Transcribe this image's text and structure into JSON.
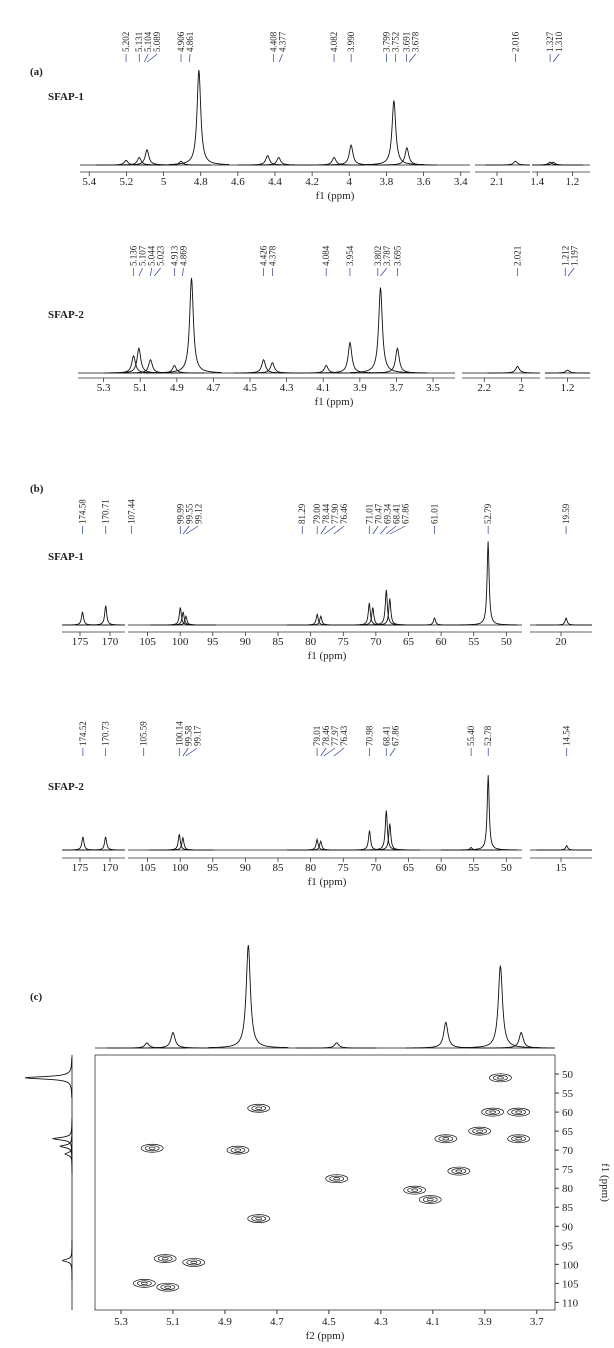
{
  "chart_data": [
    {
      "type": "spectrum",
      "panel": "(a)",
      "sample": "SFAP-1",
      "xlabel": "f1 (ppm)",
      "color": "#111111",
      "label_color": "#2e3f8f",
      "segments": [
        {
          "xlim": [
            5.45,
            3.35
          ],
          "xticks": [
            5.4,
            5.2,
            5.0,
            4.8,
            4.6,
            4.4,
            4.2,
            4.0,
            3.8,
            3.6,
            3.4
          ]
        },
        {
          "xlim": [
            2.2,
            1.95
          ],
          "xticks": [
            2.1
          ]
        },
        {
          "xlim": [
            1.43,
            1.1
          ],
          "xticks": [
            1.4,
            1.2
          ]
        }
      ],
      "peaks": [
        {
          "x": 5.202,
          "y": 5
        },
        {
          "x": 5.131,
          "y": 8
        },
        {
          "x": 5.089,
          "y": 16
        },
        {
          "x": 4.906,
          "y": 4
        },
        {
          "x": 4.81,
          "y": 100
        },
        {
          "x": 4.44,
          "y": 10
        },
        {
          "x": 4.38,
          "y": 8
        },
        {
          "x": 4.082,
          "y": 8
        },
        {
          "x": 3.99,
          "y": 21
        },
        {
          "x": 3.76,
          "y": 68
        },
        {
          "x": 3.69,
          "y": 18
        },
        {
          "x": 2.016,
          "y": 4
        },
        {
          "x": 1.327,
          "y": 3
        },
        {
          "x": 1.31,
          "y": 3
        }
      ],
      "peak_labels": [
        5.202,
        5.131,
        5.104,
        5.089,
        4.906,
        4.861,
        4.408,
        4.377,
        4.082,
        {
          "value": 3.99,
          "label": "3.990"
        },
        3.799,
        3.752,
        3.691,
        3.678,
        2.016,
        1.327,
        {
          "value": 1.31,
          "label": "1.310"
        }
      ]
    },
    {
      "type": "spectrum",
      "sample": "SFAP-2",
      "xlabel": "f1 (ppm)",
      "color": "#111111",
      "label_color": "#2e3f8f",
      "segments": [
        {
          "xlim": [
            5.44,
            3.38
          ],
          "xticks": [
            5.3,
            5.1,
            4.9,
            4.7,
            4.5,
            4.3,
            4.1,
            3.9,
            3.7,
            3.5
          ]
        },
        {
          "xlim": [
            2.32,
            1.9
          ],
          "xticks": [
            2.2,
            2.0
          ]
        },
        {
          "xlim": [
            1.32,
            1.08
          ],
          "xticks": [
            1.2
          ]
        }
      ],
      "peaks": [
        {
          "x": 5.136,
          "y": 18
        },
        {
          "x": 5.107,
          "y": 26
        },
        {
          "x": 5.044,
          "y": 14
        },
        {
          "x": 4.913,
          "y": 8
        },
        {
          "x": 4.82,
          "y": 100
        },
        {
          "x": 4.426,
          "y": 14
        },
        {
          "x": 4.378,
          "y": 11
        },
        {
          "x": 4.084,
          "y": 8
        },
        {
          "x": 3.954,
          "y": 32
        },
        {
          "x": 3.787,
          "y": 90
        },
        {
          "x": 3.695,
          "y": 26
        },
        {
          "x": 2.021,
          "y": 7
        },
        {
          "x": 1.2,
          "y": 3
        }
      ],
      "peak_labels": [
        5.136,
        5.107,
        5.044,
        5.023,
        4.913,
        4.869,
        4.426,
        4.378,
        4.084,
        3.954,
        3.802,
        3.787,
        3.695,
        2.021,
        1.212,
        1.197
      ]
    },
    {
      "type": "spectrum",
      "panel": "(b)",
      "sample": "SFAP-1",
      "xlabel": "f1 (ppm)",
      "color": "#111111",
      "label_color": "#2e3f8f",
      "segments": [
        {
          "xlim": [
            178,
            167.5
          ],
          "xticks": [
            175,
            170
          ]
        },
        {
          "xlim": [
            108,
            47.6
          ],
          "xticks": [
            105,
            100,
            95,
            90,
            85,
            80,
            75,
            70,
            65,
            60,
            55,
            50
          ]
        },
        {
          "xlim": [
            22.5,
            17.5
          ],
          "xticks": [
            20
          ]
        }
      ],
      "peaks": [
        {
          "x": 174.58,
          "y": 15
        },
        {
          "x": 170.71,
          "y": 22
        },
        {
          "x": 99.99,
          "y": 20
        },
        {
          "x": 99.55,
          "y": 15
        },
        {
          "x": 99.12,
          "y": 10
        },
        {
          "x": 79.0,
          "y": 12
        },
        {
          "x": 78.44,
          "y": 10
        },
        {
          "x": 71.01,
          "y": 25
        },
        {
          "x": 70.47,
          "y": 20
        },
        {
          "x": 68.41,
          "y": 40
        },
        {
          "x": 67.86,
          "y": 30
        },
        {
          "x": 61.01,
          "y": 8
        },
        {
          "x": 52.79,
          "y": 95
        },
        {
          "x": 19.59,
          "y": 8
        }
      ],
      "peak_labels": [
        174.58,
        170.71,
        107.44,
        99.99,
        99.55,
        99.12,
        81.29,
        {
          "value": 79.0,
          "label": "79.00"
        },
        78.44,
        {
          "value": 77.9,
          "label": "77.90"
        },
        76.46,
        71.01,
        70.47,
        69.34,
        68.41,
        67.86,
        61.01,
        52.79,
        19.59
      ]
    },
    {
      "type": "spectrum",
      "sample": "SFAP-2",
      "xlabel": "f1 (ppm)",
      "color": "#111111",
      "label_color": "#2e3f8f",
      "segments": [
        {
          "xlim": [
            178,
            167.5
          ],
          "xticks": [
            175,
            170
          ]
        },
        {
          "xlim": [
            108,
            47.6
          ],
          "xticks": [
            105,
            100,
            95,
            90,
            85,
            80,
            75,
            70,
            65,
            60,
            55,
            50
          ]
        },
        {
          "xlim": [
            17.5,
            12.5
          ],
          "xticks": [
            15
          ]
        }
      ],
      "peaks": [
        {
          "x": 174.52,
          "y": 15
        },
        {
          "x": 170.73,
          "y": 15
        },
        {
          "x": 100.14,
          "y": 18
        },
        {
          "x": 99.58,
          "y": 14
        },
        {
          "x": 79.01,
          "y": 12
        },
        {
          "x": 78.46,
          "y": 10
        },
        {
          "x": 70.98,
          "y": 22
        },
        {
          "x": 68.41,
          "y": 45
        },
        {
          "x": 67.86,
          "y": 30
        },
        {
          "x": 55.4,
          "y": 3
        },
        {
          "x": 52.78,
          "y": 85
        },
        {
          "x": 14.54,
          "y": 5
        }
      ],
      "peak_labels": [
        174.52,
        170.73,
        105.59,
        100.14,
        99.58,
        99.17,
        79.01,
        78.46,
        77.97,
        76.43,
        70.98,
        68.41,
        67.86,
        {
          "value": 55.4,
          "label": "55.40"
        },
        52.78,
        14.54
      ]
    },
    {
      "type": "hsqc",
      "panel": "(c)",
      "xlabel": "f2 (ppm)",
      "ylabel": "f1 (ppm)",
      "color": "#111111",
      "xlim": [
        5.4,
        3.63
      ],
      "xticks": [
        5.3,
        5.1,
        4.9,
        4.7,
        4.5,
        4.3,
        4.1,
        3.9,
        3.7
      ],
      "ylim": [
        45,
        112
      ],
      "yticks": [
        50,
        55,
        60,
        65,
        70,
        75,
        80,
        85,
        90,
        95,
        100,
        105,
        110
      ],
      "peaks": [
        {
          "x": 3.84,
          "y": 51
        },
        {
          "x": 3.87,
          "y": 60
        },
        {
          "x": 3.77,
          "y": 60
        },
        {
          "x": 3.92,
          "y": 65
        },
        {
          "x": 4.05,
          "y": 67
        },
        {
          "x": 3.77,
          "y": 67
        },
        {
          "x": 5.18,
          "y": 69.5
        },
        {
          "x": 4.85,
          "y": 70
        },
        {
          "x": 4.47,
          "y": 77.5
        },
        {
          "x": 4.0,
          "y": 75.5
        },
        {
          "x": 4.17,
          "y": 80.5
        },
        {
          "x": 4.11,
          "y": 83
        },
        {
          "x": 4.77,
          "y": 59
        },
        {
          "x": 4.77,
          "y": 88
        },
        {
          "x": 5.13,
          "y": 98.5
        },
        {
          "x": 5.02,
          "y": 99.5
        },
        {
          "x": 5.21,
          "y": 105
        },
        {
          "x": 5.12,
          "y": 106
        }
      ],
      "top_trace": [
        {
          "x": 5.2,
          "h": 5
        },
        {
          "x": 5.1,
          "h": 15
        },
        {
          "x": 4.81,
          "h": 100
        },
        {
          "x": 4.47,
          "h": 5
        },
        {
          "x": 4.05,
          "h": 25
        },
        {
          "x": 3.84,
          "h": 80
        },
        {
          "x": 3.76,
          "h": 15
        }
      ],
      "left_trace": [
        {
          "y": 51,
          "h": 100
        },
        {
          "y": 67,
          "h": 40
        },
        {
          "y": 69,
          "h": 25
        },
        {
          "y": 71,
          "h": 15
        },
        {
          "y": 99,
          "h": 20
        }
      ]
    }
  ]
}
